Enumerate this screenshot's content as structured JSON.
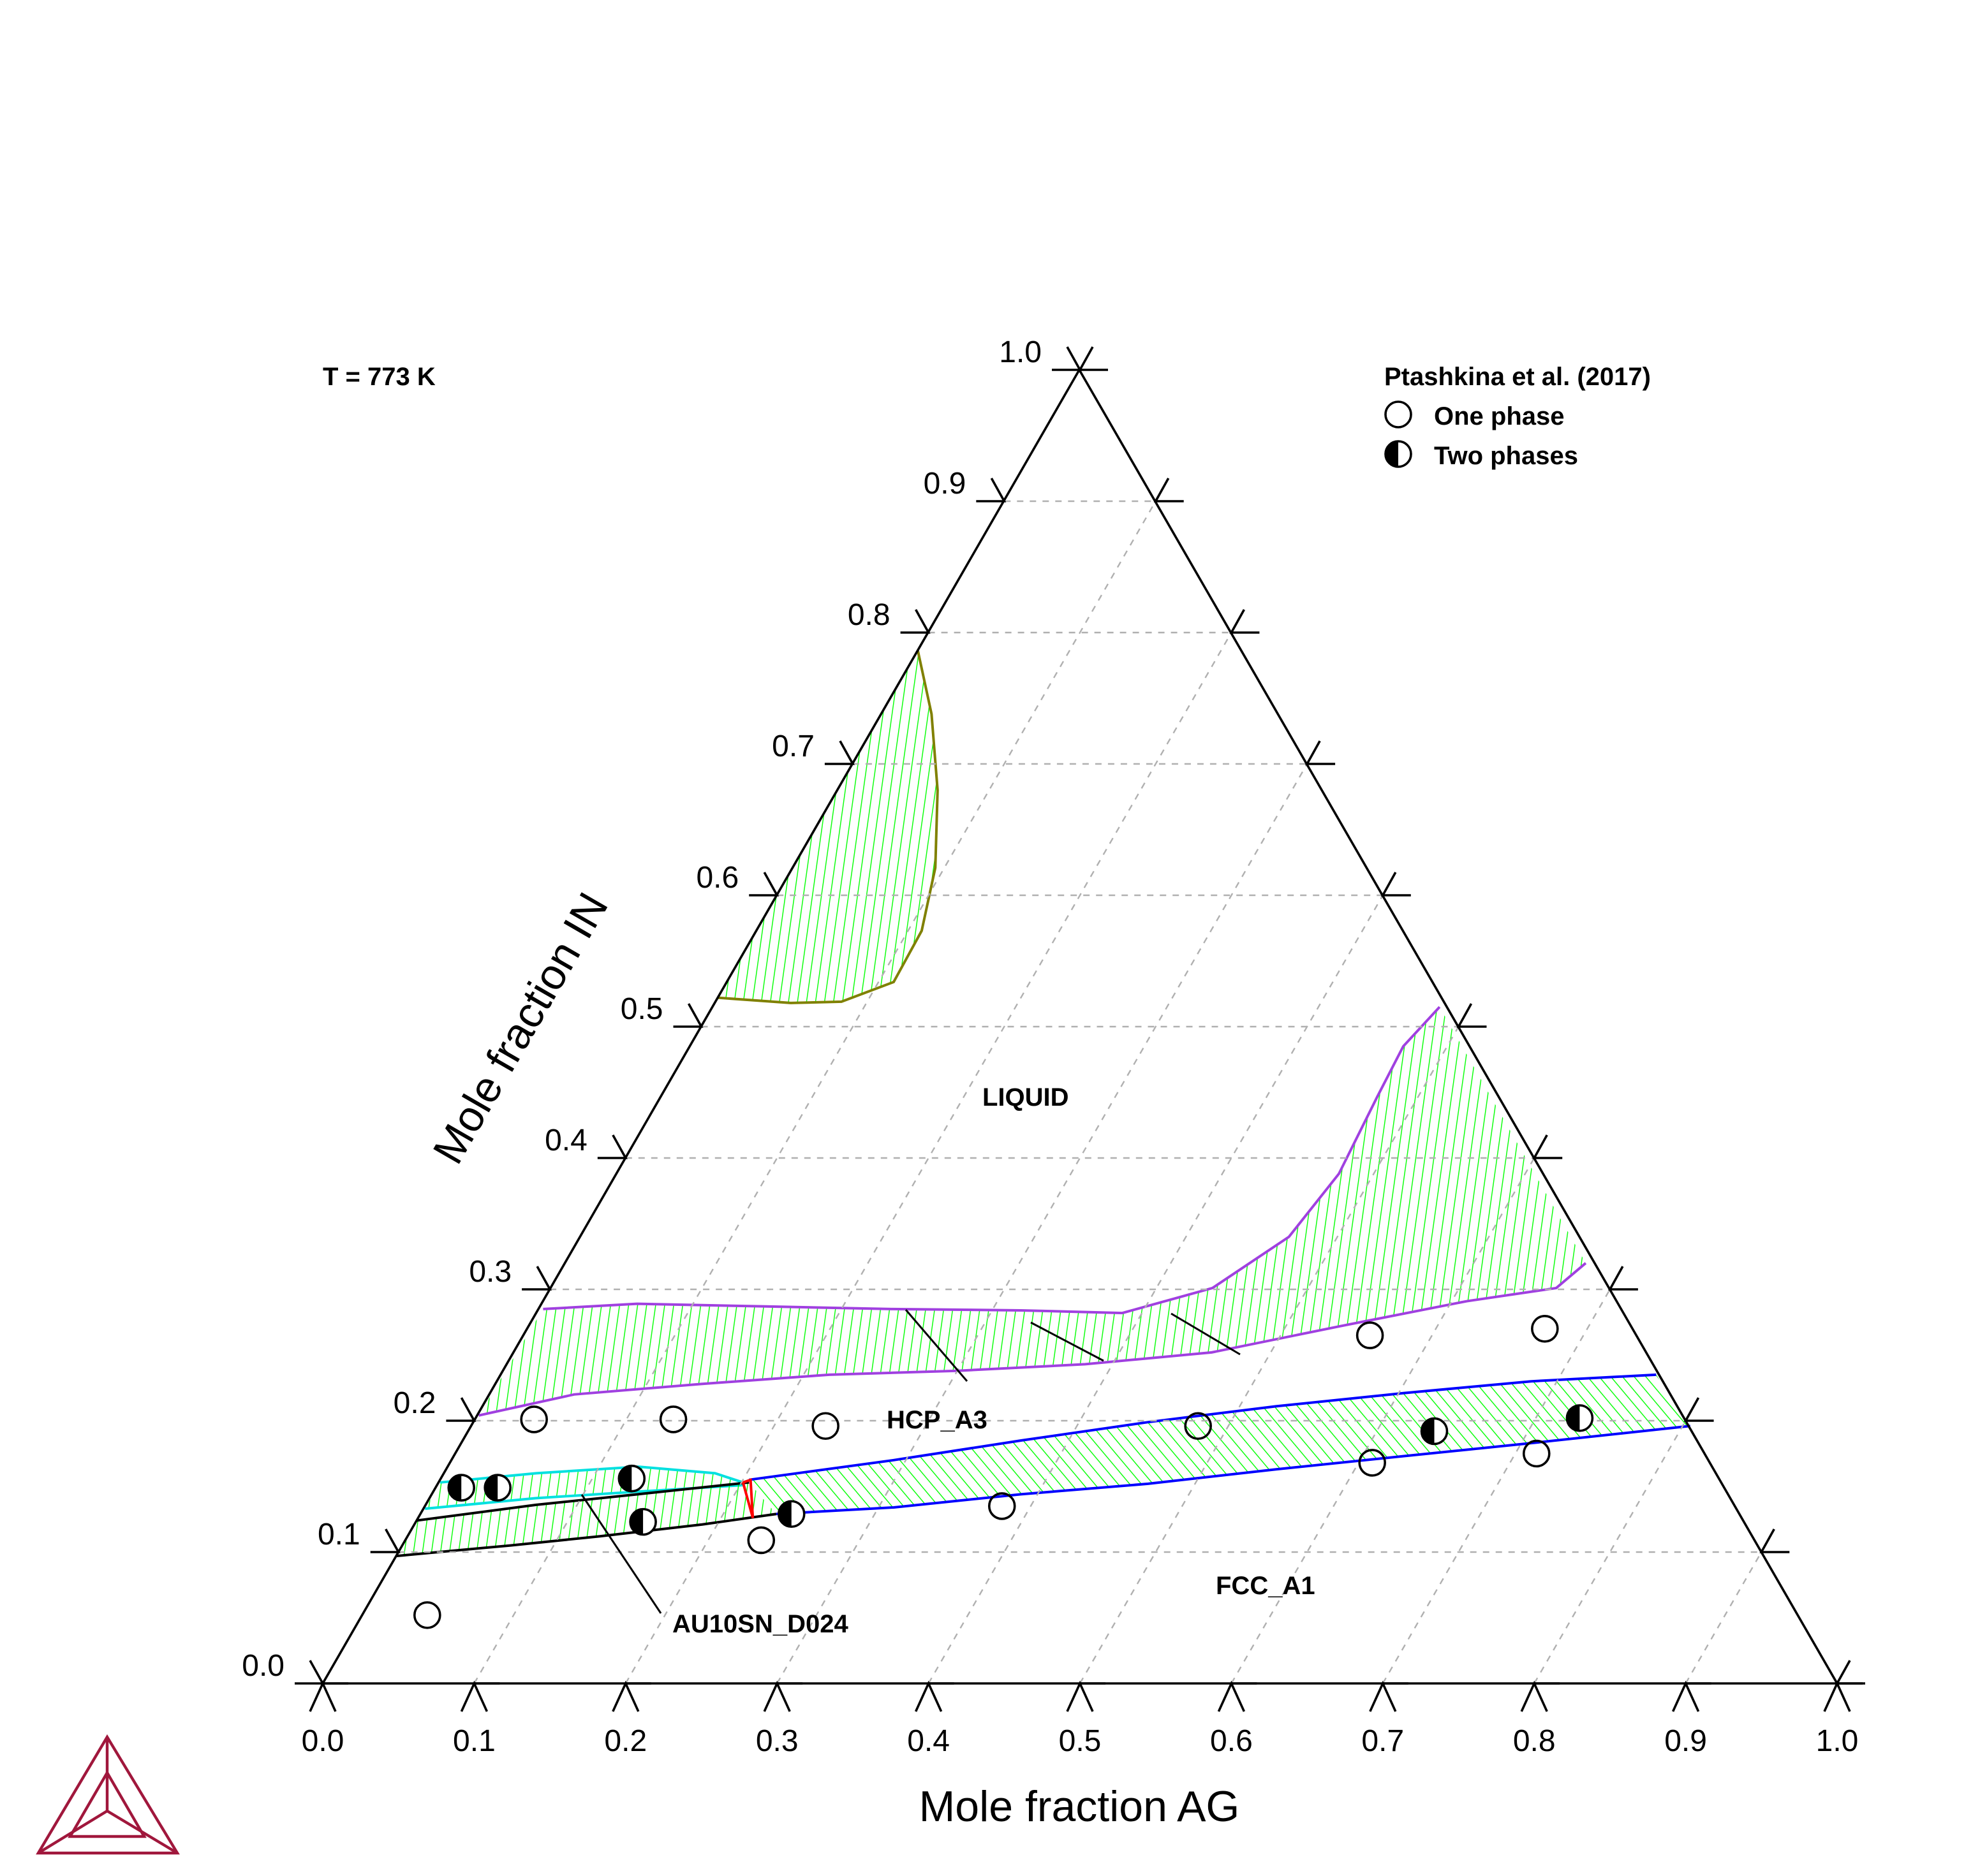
{
  "chart_data": {
    "type": "ternary",
    "title": "T = 773 K",
    "xlabel": "Mole fraction AG",
    "ylabel": "Mole fraction IN",
    "xlim": [
      0,
      1
    ],
    "ylim": [
      0,
      1
    ],
    "xticks": [
      {
        "value": 0,
        "label": "0.0"
      },
      0.1,
      0.2,
      0.3,
      0.4,
      0.5,
      0.6,
      0.7,
      0.8,
      0.9,
      {
        "value": 1,
        "label": "1.0"
      }
    ],
    "yticks": [
      {
        "value": 0,
        "label": "0.0"
      },
      0.1,
      0.2,
      0.3,
      0.4,
      0.5,
      0.6,
      0.7,
      0.8,
      0.9,
      {
        "value": 1,
        "label": "1.0"
      }
    ],
    "grid": true,
    "legend": {
      "title": "Ptashkina et al. (2017)",
      "loc": "upper right"
    },
    "series": [
      {
        "name": "One phase",
        "marker": "open",
        "color": "#000000",
        "x": [
          0.043,
          0.039,
          0.131,
          0.234,
          0.235,
          0.381,
          0.48,
          0.559,
          0.672,
          0.609,
          0.714
        ],
        "y": [
          0.052,
          0.201,
          0.201,
          0.196,
          0.109,
          0.135,
          0.196,
          0.265,
          0.27,
          0.168,
          0.175
        ]
      },
      {
        "name": "Two phases",
        "marker": "half",
        "color": "#000000",
        "x": [
          0.017,
          0.041,
          0.126,
          0.15,
          0.245,
          0.638,
          0.729
        ],
        "y": [
          0.149,
          0.149,
          0.156,
          0.123,
          0.129,
          0.192,
          0.202
        ]
      }
    ],
    "regions": [
      {
        "color": "#00ff00",
        "boundaries": [
          {
            "color": "#808000",
            "x": [
              0,
              0.033,
              0.066,
              0.094,
              0.109,
              0.11,
              0.083,
              0.05,
              0
            ],
            "y": [
              0.786,
              0.738,
              0.68,
              0.621,
              0.573,
              0.534,
              0.519,
              0.518,
              0.522
            ]
          }
        ]
      },
      {
        "color": "#00ff00",
        "boundaries": [
          {
            "color": "#a040e0",
            "x": [
              0.003,
              0.063,
              0.149,
              0.234,
              0.319,
              0.387,
              0.437,
              0.468,
              0.477,
              0.473,
              0.471,
              0.48
            ],
            "y": [
              0.285,
              0.289,
              0.287,
              0.285,
              0.284,
              0.282,
              0.301,
              0.34,
              0.388,
              0.447,
              0.485,
              0.515
            ]
          },
          {
            "color": "#a040e0",
            "x": [
              0.001,
              0.056,
              0.136,
              0.217,
              0.3,
              0.382,
              0.461,
              0.536,
              0.61,
              0.664,
              0.674
            ],
            "y": [
              0.204,
              0.22,
              0.228,
              0.235,
              0.238,
              0.243,
              0.252,
              0.272,
              0.291,
              0.301,
              0.32
            ]
          }
        ]
      },
      {
        "color": "#00ff00",
        "boundaries": [
          {
            "color": "#0000ff",
            "x": [
              0.204,
              0.292,
              0.369,
              0.446,
              0.524,
              0.603,
              0.683,
              0.763
            ],
            "y": [
              0.155,
              0.17,
              0.185,
              0.199,
              0.211,
              0.221,
              0.23,
              0.235
            ]
          },
          {
            "color": "#0000ff",
            "x": [
              0.235,
              0.31,
              0.389,
              0.469,
              0.548,
              0.627,
              0.707,
              0.805
            ],
            "y": [
              0.129,
              0.134,
              0.144,
              0.152,
              0.163,
              0.173,
              0.183,
              0.196
            ]
          }
        ]
      },
      {
        "color": "#00ff00",
        "boundaries": [
          {
            "color": "#00e0e0",
            "x": [
              0.001,
              0.061,
              0.126,
              0.179,
              0.201
            ],
            "y": [
              0.153,
              0.16,
              0.165,
              0.16,
              0.153
            ]
          },
          {
            "color": "#00e0e0",
            "x": [
              0.001,
              0.07,
              0.135,
              0.203
            ],
            "y": [
              0.133,
              0.141,
              0.146,
              0.151
            ]
          }
        ]
      },
      {
        "color": "#00ff00",
        "boundaries": [
          {
            "color": "#000000",
            "x": [
              0,
              0.073,
              0.136,
              0.205
            ],
            "y": [
              0.124,
              0.136,
              0.144,
              0.153
            ]
          },
          {
            "color": "#000000",
            "x": [
              0,
              0.071,
              0.127,
              0.19,
              0.235
            ],
            "y": [
              0.097,
              0.105,
              0.112,
              0.121,
              0.129
            ]
          }
        ]
      }
    ],
    "tie_triangles": [
      {
        "color": "#ff0000",
        "x": [
          0.201,
          0.221,
          0.205
        ],
        "y": [
          0.153,
          0.126,
          0.155
        ]
      }
    ],
    "phase_labels": [
      "LIQUID",
      "HCP_A3",
      "FCC_A1",
      "AU10SN_D024"
    ]
  }
}
